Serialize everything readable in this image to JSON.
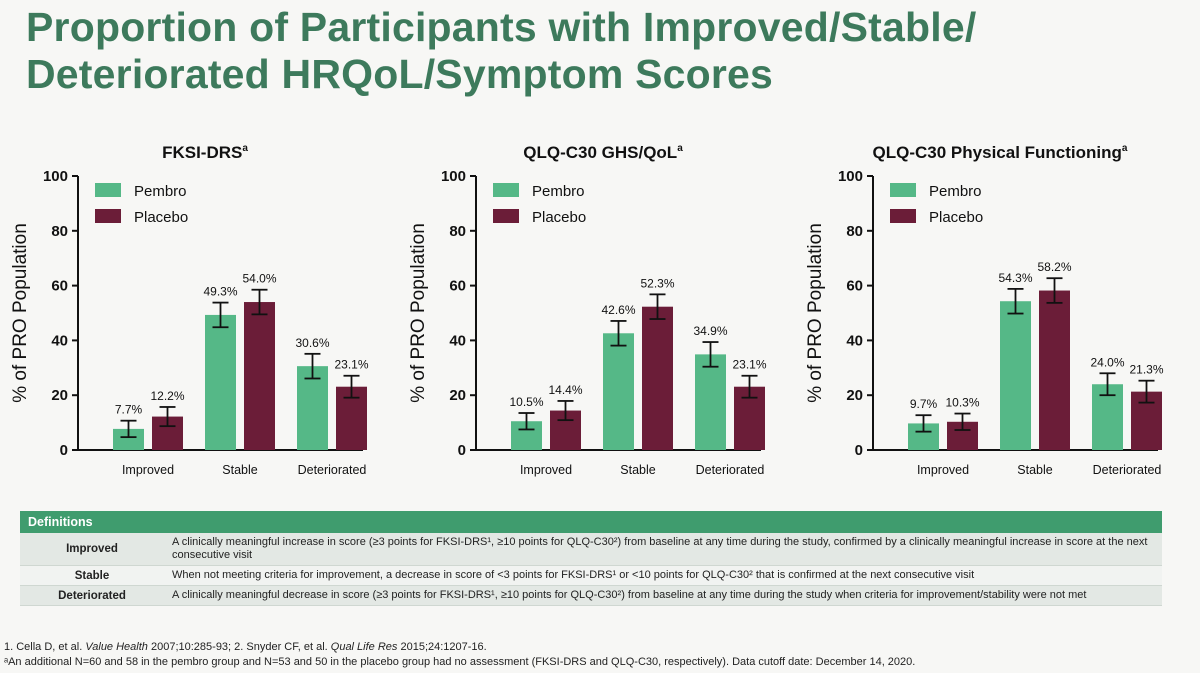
{
  "page": {
    "title_line1": "Proportion of Participants with Improved/Stable/",
    "title_line2": "Deteriorated HRQoL/Symptom Scores"
  },
  "colors": {
    "pembro": "#55b887",
    "placebo": "#6b1d38",
    "title": "#3d7a5c",
    "table_header": "#3f9c6e"
  },
  "chart_data": [
    {
      "type": "bar",
      "title": "FKSI-DRS",
      "title_sup": "a",
      "ylabel": "% of PRO Population",
      "ylim": [
        0,
        100
      ],
      "yticks": [
        0,
        20,
        40,
        60,
        80,
        100
      ],
      "legend_position": "top-left",
      "categories": [
        "Improved",
        "Stable",
        "Deteriorated"
      ],
      "series": [
        {
          "name": "Pembro",
          "values": [
            7.7,
            49.3,
            30.6
          ],
          "labels": [
            "7.7%",
            "49.3%",
            "30.6%"
          ],
          "err": [
            3,
            4.5,
            4.5
          ]
        },
        {
          "name": "Placebo",
          "values": [
            12.2,
            54.0,
            23.1
          ],
          "labels": [
            "12.2%",
            "54.0%",
            "23.1%"
          ],
          "err": [
            3.5,
            4.5,
            4
          ]
        }
      ]
    },
    {
      "type": "bar",
      "title": "QLQ-C30 GHS/QoL",
      "title_sup": "a",
      "ylabel": "% of PRO Population",
      "ylim": [
        0,
        100
      ],
      "yticks": [
        0,
        20,
        40,
        60,
        80,
        100
      ],
      "legend_position": "top-left",
      "categories": [
        "Improved",
        "Stable",
        "Deteriorated"
      ],
      "series": [
        {
          "name": "Pembro",
          "values": [
            10.5,
            42.6,
            34.9
          ],
          "labels": [
            "10.5%",
            "42.6%",
            "34.9%"
          ],
          "err": [
            3,
            4.5,
            4.5
          ]
        },
        {
          "name": "Placebo",
          "values": [
            14.4,
            52.3,
            23.1
          ],
          "labels": [
            "14.4%",
            "52.3%",
            "23.1%"
          ],
          "err": [
            3.5,
            4.5,
            4
          ]
        }
      ]
    },
    {
      "type": "bar",
      "title": "QLQ-C30 Physical Functioning",
      "title_sup": "a",
      "ylabel": "% of PRO Population",
      "ylim": [
        0,
        100
      ],
      "yticks": [
        0,
        20,
        40,
        60,
        80,
        100
      ],
      "legend_position": "top-left",
      "categories": [
        "Improved",
        "Stable",
        "Deteriorated"
      ],
      "series": [
        {
          "name": "Pembro",
          "values": [
            9.7,
            54.3,
            24.0
          ],
          "labels": [
            "9.7%",
            "54.3%",
            "24.0%"
          ],
          "err": [
            3,
            4.5,
            4
          ]
        },
        {
          "name": "Placebo",
          "values": [
            10.3,
            58.2,
            21.3
          ],
          "labels": [
            "10.3%",
            "58.2%",
            "21.3%"
          ],
          "err": [
            3,
            4.5,
            4
          ]
        }
      ]
    }
  ],
  "definitions": {
    "header": "Definitions",
    "rows": [
      {
        "term": "Improved",
        "description": "A clinically meaningful increase in score (≥3 points for FKSI-DRS¹, ≥10 points for QLQ-C30²) from baseline at any time during the study, confirmed by a clinically meaningful increase in score at the next consecutive visit"
      },
      {
        "term": "Stable",
        "description": "When not meeting criteria for improvement, a decrease in score of <3 points for FKSI-DRS¹ or <10 points for QLQ-C30² that is confirmed at the next consecutive visit"
      },
      {
        "term": "Deteriorated",
        "description": "A clinically meaningful decrease in score (≥3 points for FKSI-DRS¹, ≥10 points for QLQ-C30²) from baseline at any time during the study when criteria for improvement/stability were not met"
      }
    ]
  },
  "footnotes": {
    "refs_prefix": "1. Cella D, et al. ",
    "ref1_journal": "Value Health",
    "ref1_rest": " 2007;10:285-93; 2. Snyder CF, et al. ",
    "ref2_journal": "Qual Life Res",
    "ref2_rest": " 2015;24:1207-16.",
    "note": "ᵃAn additional N=60 and 58 in the pembro group and N=53 and 50 in the placebo group had no assessment (FKSI-DRS and QLQ-C30, respectively). Data cutoff date: December 14, 2020."
  }
}
